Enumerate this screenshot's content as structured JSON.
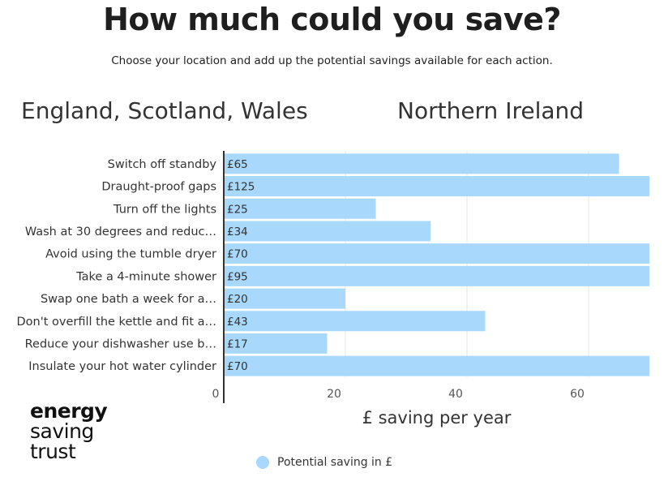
{
  "header": {
    "title": "How much could you save?",
    "subtitle": "Choose your location and add up the potential savings available for each action."
  },
  "tabs": [
    {
      "label": "England, Scotland, Wales"
    },
    {
      "label": "Northern Ireland"
    }
  ],
  "logo": {
    "line1": "energy",
    "line2": "saving",
    "line3": "trust"
  },
  "legend": {
    "label": "Potential saving in £",
    "color": "#a8d8fb"
  },
  "colors": {
    "bar": "#a8d8fb",
    "axis": "#333333",
    "grid": "#e6e6e6"
  },
  "chart_data": {
    "type": "bar",
    "orientation": "horizontal",
    "categories": [
      "Switch off standby",
      "Draught-proof gaps",
      "Turn off the lights",
      "Wash at 30 degrees and reduc…",
      "Avoid using the tumble dryer",
      "Take a 4-minute shower",
      "Swap one bath a week for a…",
      "Don't overfill the kettle and fit a…",
      "Reduce your dishwasher use b…",
      "Insulate your hot water cylinder"
    ],
    "series": [
      {
        "name": "Potential saving in £",
        "values": [
          65,
          125,
          25,
          34,
          70,
          95,
          20,
          43,
          17,
          70
        ],
        "data_labels": [
          "£65",
          "£125",
          "£25",
          "£34",
          "£70",
          "£95",
          "£20",
          "£43",
          "£17",
          "£70"
        ]
      }
    ],
    "xlabel": "£ saving per year",
    "xlim": [
      0,
      70
    ],
    "xticks": [
      0,
      20,
      40,
      60
    ],
    "grid": true,
    "legend_position": "bottom"
  }
}
